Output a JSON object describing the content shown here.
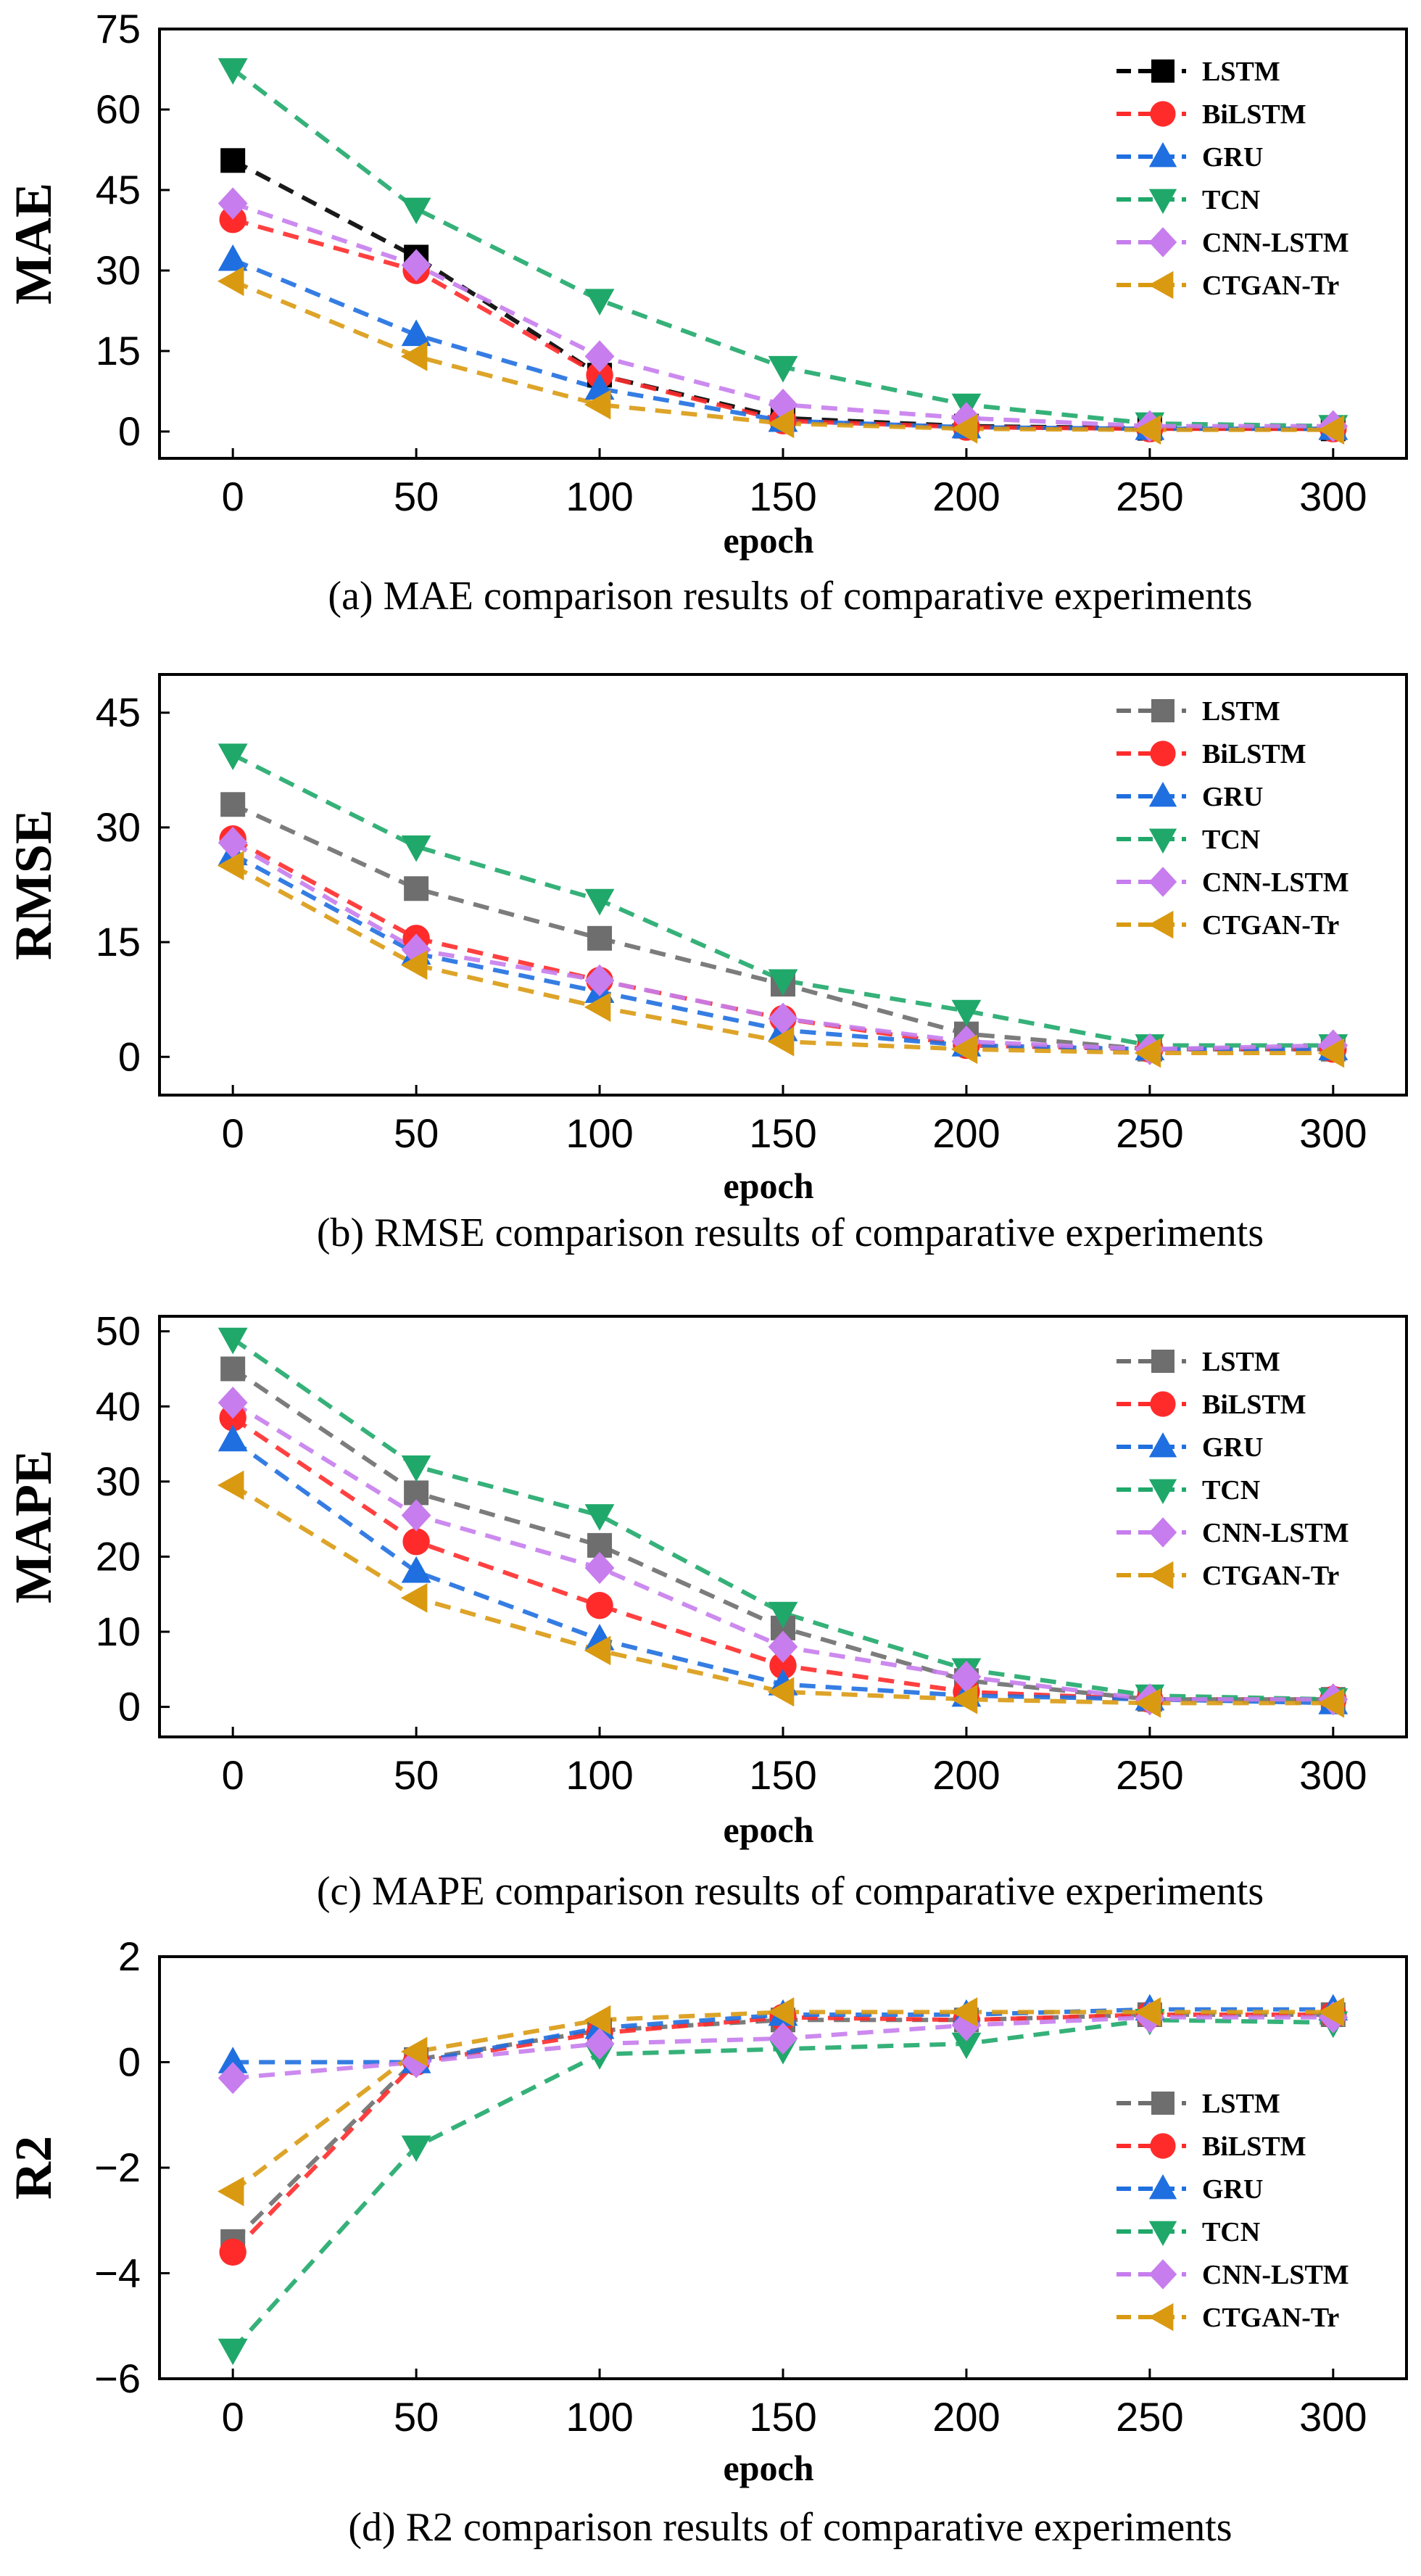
{
  "chart_data": [
    {
      "type": "line",
      "caption": "(a) MAE comparison results of comparative experiments",
      "xlabel": "epoch",
      "ylabel": "MAE",
      "x": [
        0,
        50,
        100,
        150,
        200,
        250,
        300
      ],
      "xticks": [
        "0",
        "50",
        "100",
        "150",
        "200",
        "250",
        "300"
      ],
      "yticks": [
        "0",
        "15",
        "30",
        "45",
        "60",
        "75"
      ],
      "ytick_values": [
        0,
        15,
        30,
        45,
        60,
        75
      ],
      "ylim": [
        -5,
        75
      ],
      "legend_position": "top-right",
      "series": [
        {
          "name": "LSTM",
          "marker": "square",
          "color": "#000000",
          "values": [
            50.5,
            32.5,
            10.5,
            2.5,
            1.0,
            0.6,
            0.5
          ]
        },
        {
          "name": "BiLSTM",
          "marker": "circle",
          "color": "#ff2b2b",
          "values": [
            39.5,
            30.0,
            10.5,
            2.0,
            0.8,
            0.5,
            0.5
          ]
        },
        {
          "name": "GRU",
          "marker": "triangle-up",
          "color": "#1f6fe0",
          "values": [
            32.0,
            18.0,
            8.0,
            2.0,
            0.8,
            0.5,
            0.5
          ]
        },
        {
          "name": "TCN",
          "marker": "triangle-down",
          "color": "#1fa86a",
          "values": [
            67.5,
            41.5,
            24.5,
            12.0,
            5.0,
            1.5,
            1.0
          ]
        },
        {
          "name": "CNN-LSTM",
          "marker": "diamond",
          "color": "#c77ded",
          "values": [
            42.5,
            31.0,
            14.0,
            5.0,
            2.5,
            1.0,
            1.0
          ]
        },
        {
          "name": "CTGAN-Tr",
          "marker": "triangle-left",
          "color": "#d99a12",
          "values": [
            28.0,
            14.0,
            5.0,
            1.5,
            0.5,
            0.3,
            0.3
          ]
        }
      ]
    },
    {
      "type": "line",
      "caption": "(b) RMSE comparison results of comparative experiments",
      "xlabel": "epoch",
      "ylabel": "RMSE",
      "x": [
        0,
        50,
        100,
        150,
        200,
        250,
        300
      ],
      "xticks": [
        "0",
        "50",
        "100",
        "150",
        "200",
        "250",
        "300"
      ],
      "yticks": [
        "0",
        "15",
        "30",
        "45"
      ],
      "ytick_values": [
        0,
        15,
        30,
        45
      ],
      "ylim": [
        -5,
        50
      ],
      "legend_position": "top-right",
      "series": [
        {
          "name": "LSTM",
          "marker": "square",
          "color": "#6e6e6e",
          "values": [
            33.0,
            22.0,
            15.5,
            9.5,
            3.0,
            1.0,
            1.0
          ]
        },
        {
          "name": "BiLSTM",
          "marker": "circle",
          "color": "#ff2b2b",
          "values": [
            28.5,
            15.5,
            10.0,
            5.0,
            1.5,
            1.0,
            1.0
          ]
        },
        {
          "name": "GRU",
          "marker": "triangle-up",
          "color": "#1f6fe0",
          "values": [
            26.5,
            13.5,
            8.5,
            3.5,
            1.5,
            1.0,
            1.0
          ]
        },
        {
          "name": "TCN",
          "marker": "triangle-down",
          "color": "#1fa86a",
          "values": [
            39.5,
            27.5,
            20.5,
            10.0,
            6.0,
            1.5,
            1.5
          ]
        },
        {
          "name": "CNN-LSTM",
          "marker": "diamond",
          "color": "#c77ded",
          "values": [
            28.0,
            14.0,
            10.0,
            5.0,
            2.0,
            1.0,
            1.5
          ]
        },
        {
          "name": "CTGAN-Tr",
          "marker": "triangle-left",
          "color": "#d99a12",
          "values": [
            25.0,
            12.0,
            6.5,
            2.0,
            1.0,
            0.5,
            0.5
          ]
        }
      ]
    },
    {
      "type": "line",
      "caption": "(c) MAPE comparison results of comparative experiments",
      "xlabel": "epoch",
      "ylabel": "MAPE",
      "x": [
        0,
        50,
        100,
        150,
        200,
        250,
        300
      ],
      "xticks": [
        "0",
        "50",
        "100",
        "150",
        "200",
        "250",
        "300"
      ],
      "yticks": [
        "0",
        "10",
        "20",
        "30",
        "40",
        "50"
      ],
      "ytick_values": [
        0,
        10,
        20,
        30,
        40,
        50
      ],
      "ylim": [
        -4,
        52
      ],
      "legend_position": "top-right",
      "series": [
        {
          "name": "LSTM",
          "marker": "square",
          "color": "#6e6e6e",
          "values": [
            45.0,
            28.5,
            21.5,
            10.5,
            3.5,
            1.0,
            1.0
          ]
        },
        {
          "name": "BiLSTM",
          "marker": "circle",
          "color": "#ff2b2b",
          "values": [
            38.5,
            22.0,
            13.5,
            5.5,
            2.0,
            1.0,
            1.0
          ]
        },
        {
          "name": "GRU",
          "marker": "triangle-up",
          "color": "#1f6fe0",
          "values": [
            35.5,
            18.0,
            9.0,
            3.0,
            1.5,
            1.0,
            0.5
          ]
        },
        {
          "name": "TCN",
          "marker": "triangle-down",
          "color": "#1fa86a",
          "values": [
            49.0,
            32.0,
            25.5,
            12.5,
            5.0,
            1.5,
            1.0
          ]
        },
        {
          "name": "CNN-LSTM",
          "marker": "diamond",
          "color": "#c77ded",
          "values": [
            40.5,
            25.5,
            18.5,
            8.0,
            4.0,
            1.0,
            1.0
          ]
        },
        {
          "name": "CTGAN-Tr",
          "marker": "triangle-left",
          "color": "#d99a12",
          "values": [
            29.5,
            14.5,
            7.5,
            2.0,
            1.0,
            0.5,
            0.5
          ]
        }
      ]
    },
    {
      "type": "line",
      "caption": "(d) R2 comparison results of comparative experiments",
      "xlabel": "epoch",
      "ylabel": "R2",
      "x": [
        0,
        50,
        100,
        150,
        200,
        250,
        300
      ],
      "xticks": [
        "0",
        "50",
        "100",
        "150",
        "200",
        "250",
        "300"
      ],
      "yticks": [
        "−6",
        "−4",
        "−2",
        "0",
        "2"
      ],
      "ytick_values": [
        -6,
        -4,
        -2,
        0,
        2
      ],
      "ylim": [
        -6,
        2
      ],
      "legend_position": "bottom-right",
      "series": [
        {
          "name": "LSTM",
          "marker": "square",
          "color": "#6e6e6e",
          "values": [
            -3.4,
            0.05,
            0.6,
            0.8,
            0.8,
            0.9,
            0.9
          ]
        },
        {
          "name": "BiLSTM",
          "marker": "circle",
          "color": "#ff2b2b",
          "values": [
            -3.6,
            0.0,
            0.55,
            0.85,
            0.8,
            0.9,
            0.9
          ]
        },
        {
          "name": "GRU",
          "marker": "triangle-up",
          "color": "#1f6fe0",
          "values": [
            0.0,
            0.0,
            0.65,
            0.9,
            0.9,
            1.0,
            1.0
          ]
        },
        {
          "name": "TCN",
          "marker": "triangle-down",
          "color": "#1fa86a",
          "values": [
            -5.45,
            -1.6,
            0.15,
            0.25,
            0.35,
            0.8,
            0.75
          ]
        },
        {
          "name": "CNN-LSTM",
          "marker": "diamond",
          "color": "#c77ded",
          "values": [
            -0.3,
            0.0,
            0.35,
            0.45,
            0.7,
            0.85,
            0.85
          ]
        },
        {
          "name": "CTGAN-Tr",
          "marker": "triangle-left",
          "color": "#d99a12",
          "values": [
            -2.45,
            0.2,
            0.8,
            0.95,
            0.95,
            0.95,
            0.95
          ]
        }
      ]
    }
  ]
}
